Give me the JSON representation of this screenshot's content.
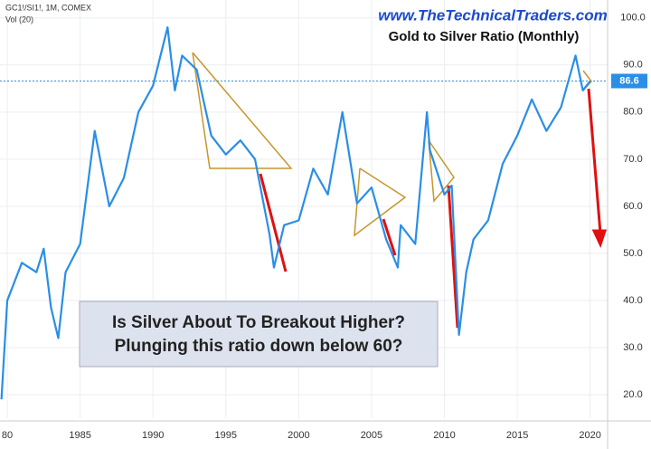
{
  "chart_data": {
    "type": "line",
    "title": "Gold to Silver Ratio (Monthly)",
    "subtitle": "www.TheTechnicalTraders.com",
    "symbol": "GC1!/SI1!, 1M, COMEX",
    "indicator": "Vol (20)",
    "annotation": [
      "Is Silver About To Breakout Higher?",
      "Plunging this ratio down below 60?"
    ],
    "x": [
      1979.6,
      1980,
      1981,
      1982,
      1982.5,
      1983,
      1983.5,
      1984,
      1985,
      1986,
      1987,
      1988,
      1989,
      1990,
      1991,
      1991.5,
      1992,
      1993,
      1994,
      1995,
      1996,
      1997,
      1998,
      1998.3,
      1999,
      2000,
      2001,
      2002,
      2003,
      2004,
      2005,
      2006,
      2006.8,
      2007,
      2008,
      2008.8,
      2009,
      2010,
      2010.5,
      2011,
      2011.5,
      2012,
      2013,
      2014,
      2015,
      2016,
      2017,
      2018,
      2019,
      2019.5,
      2020
    ],
    "series": [
      {
        "name": "GC1!/SI1!",
        "color": "#2a8ee6",
        "values": [
          19,
          40,
          48,
          46,
          51,
          38.5,
          32,
          46,
          52,
          76,
          60,
          66,
          80,
          85.6,
          98,
          84.6,
          92,
          89,
          75,
          71,
          74,
          70,
          54,
          47,
          56,
          57,
          68,
          62.5,
          80,
          60.6,
          64,
          53,
          47,
          56,
          52,
          80,
          72,
          62.5,
          64.4,
          32.7,
          46,
          53,
          57,
          69,
          75,
          82.7,
          76,
          81,
          92,
          84.6,
          86.6
        ]
      }
    ],
    "last_value": 86.6,
    "xlim": [
      1979.5,
      2021.2
    ],
    "ylim": [
      15,
      103.8
    ],
    "xticks": [
      {
        "value": 1980,
        "label": "80"
      },
      1985,
      1990,
      1995,
      2000,
      2005,
      2010,
      2015,
      2020
    ],
    "yticks": [
      {
        "value": 20,
        "label": "20.0"
      },
      {
        "value": 30,
        "label": "30.0"
      },
      {
        "value": 40,
        "label": "40.0"
      },
      {
        "value": 50,
        "label": "50.0"
      },
      {
        "value": 60,
        "label": "60.0"
      },
      {
        "value": 70,
        "label": "70.0"
      },
      {
        "value": 80,
        "label": "80.0"
      },
      {
        "value": 90,
        "label": "90.0"
      },
      {
        "value": 100,
        "label": "100.0"
      }
    ],
    "grid": true
  }
}
